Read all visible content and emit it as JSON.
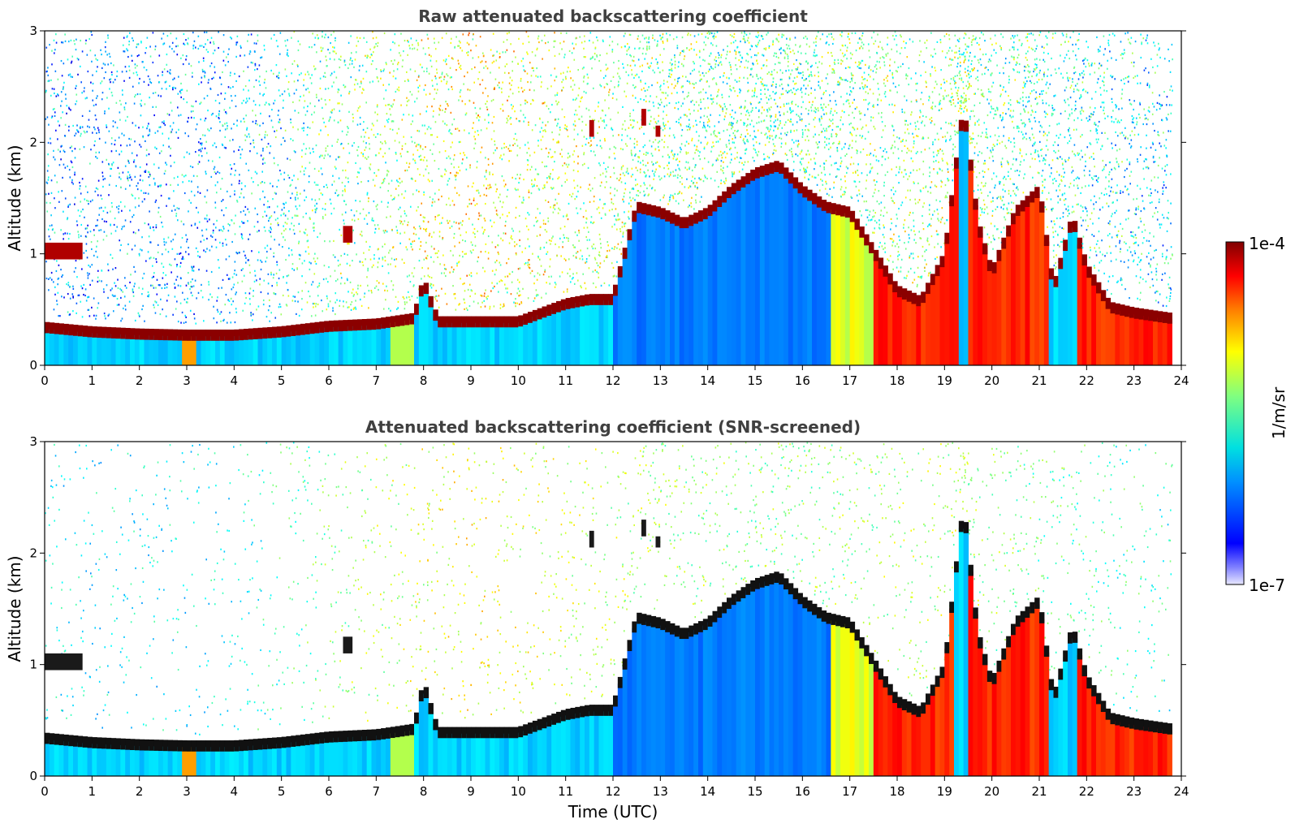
{
  "chart_data": [
    {
      "type": "heatmap",
      "title": "Raw attenuated backscattering coefficient",
      "xlabel": "",
      "ylabel": "Altitude (km)",
      "xlim": [
        0,
        24
      ],
      "ylim": [
        0,
        3
      ],
      "x_ticks": [
        "0",
        "1",
        "2",
        "3",
        "4",
        "5",
        "6",
        "7",
        "8",
        "9",
        "10",
        "11",
        "12",
        "13",
        "14",
        "15",
        "16",
        "17",
        "18",
        "19",
        "20",
        "21",
        "22",
        "23",
        "24"
      ],
      "y_ticks": [
        "0",
        "1",
        "2",
        "3"
      ],
      "layer_top_km": [
        [
          0,
          0.37
        ],
        [
          1,
          0.33
        ],
        [
          2,
          0.31
        ],
        [
          3,
          0.3
        ],
        [
          4,
          0.3
        ],
        [
          5,
          0.33
        ],
        [
          6,
          0.38
        ],
        [
          7,
          0.4
        ],
        [
          7.8,
          0.45
        ],
        [
          8,
          0.78
        ],
        [
          8.3,
          0.42
        ],
        [
          9,
          0.42
        ],
        [
          10,
          0.42
        ],
        [
          10.5,
          0.5
        ],
        [
          11,
          0.58
        ],
        [
          11.5,
          0.62
        ],
        [
          12,
          0.62
        ],
        [
          12.5,
          1.45
        ],
        [
          13,
          1.4
        ],
        [
          13.5,
          1.3
        ],
        [
          14,
          1.4
        ],
        [
          14.5,
          1.6
        ],
        [
          15,
          1.75
        ],
        [
          15.5,
          1.82
        ],
        [
          16,
          1.6
        ],
        [
          16.5,
          1.45
        ],
        [
          17,
          1.4
        ],
        [
          17.5,
          1.05
        ],
        [
          18,
          0.7
        ],
        [
          18.5,
          0.6
        ],
        [
          19,
          1.0
        ],
        [
          19.4,
          2.35
        ],
        [
          19.7,
          1.3
        ],
        [
          20,
          0.85
        ],
        [
          20.5,
          1.4
        ],
        [
          21,
          1.6
        ],
        [
          21.3,
          0.7
        ],
        [
          21.7,
          1.35
        ],
        [
          22,
          0.9
        ],
        [
          22.5,
          0.55
        ],
        [
          23,
          0.5
        ],
        [
          23.8,
          0.45
        ]
      ],
      "high_signal_regions": [
        {
          "x": [
            17.5,
            21.2
          ],
          "y": [
            0,
            1.0
          ],
          "level": "high"
        },
        {
          "x": [
            21.8,
            23.8
          ],
          "y": [
            0,
            0.4
          ],
          "level": "high"
        }
      ],
      "aerosol_signal_above_layer": [
        [
          0,
          0.05
        ],
        [
          4,
          0.1
        ],
        [
          6,
          0.35
        ],
        [
          9,
          0.6
        ],
        [
          11,
          0.5
        ],
        [
          13,
          0.4
        ],
        [
          16,
          0.35
        ],
        [
          19,
          0.45
        ],
        [
          21,
          0.3
        ],
        [
          24,
          0.15
        ]
      ],
      "clouds": [
        {
          "x": [
            0.0,
            0.8
          ],
          "y": [
            0.95,
            1.1
          ]
        },
        {
          "x": [
            6.3,
            6.5
          ],
          "y": [
            1.1,
            1.25
          ]
        },
        {
          "x": [
            11.5,
            11.6
          ],
          "y": [
            2.05,
            2.2
          ]
        },
        {
          "x": [
            12.6,
            12.7
          ],
          "y": [
            2.15,
            2.3
          ]
        },
        {
          "x": [
            12.9,
            13.0
          ],
          "y": [
            2.05,
            2.15
          ]
        }
      ],
      "colormap": "jet",
      "colorbar": {
        "min_label": "1e-7",
        "max_label": "1e-4",
        "label": "1/m/sr",
        "scale": "log"
      }
    },
    {
      "type": "heatmap",
      "title": "Attenuated backscattering coefficient (SNR-screened)",
      "xlabel": "Time (UTC)",
      "ylabel": "Altitude (km)",
      "xlim": [
        0,
        24
      ],
      "ylim": [
        0,
        3
      ],
      "x_ticks": [
        "0",
        "1",
        "2",
        "3",
        "4",
        "5",
        "6",
        "7",
        "8",
        "9",
        "10",
        "11",
        "12",
        "13",
        "14",
        "15",
        "16",
        "17",
        "18",
        "19",
        "20",
        "21",
        "22",
        "23",
        "24"
      ],
      "y_ticks": [
        "0",
        "1",
        "2",
        "3"
      ],
      "layer_top_km": [
        [
          0,
          0.37
        ],
        [
          1,
          0.33
        ],
        [
          2,
          0.31
        ],
        [
          3,
          0.3
        ],
        [
          4,
          0.3
        ],
        [
          5,
          0.33
        ],
        [
          6,
          0.38
        ],
        [
          7,
          0.4
        ],
        [
          7.8,
          0.45
        ],
        [
          8,
          0.85
        ],
        [
          8.3,
          0.42
        ],
        [
          9,
          0.42
        ],
        [
          10,
          0.42
        ],
        [
          10.5,
          0.5
        ],
        [
          11,
          0.58
        ],
        [
          11.5,
          0.62
        ],
        [
          12,
          0.62
        ],
        [
          12.5,
          1.45
        ],
        [
          13,
          1.4
        ],
        [
          13.5,
          1.3
        ],
        [
          14,
          1.4
        ],
        [
          14.5,
          1.6
        ],
        [
          15,
          1.75
        ],
        [
          15.5,
          1.82
        ],
        [
          16,
          1.6
        ],
        [
          16.5,
          1.45
        ],
        [
          17,
          1.4
        ],
        [
          17.5,
          1.05
        ],
        [
          18,
          0.7
        ],
        [
          18.5,
          0.6
        ],
        [
          19,
          1.0
        ],
        [
          19.4,
          2.45
        ],
        [
          19.7,
          1.3
        ],
        [
          20,
          0.85
        ],
        [
          20.5,
          1.4
        ],
        [
          21,
          1.6
        ],
        [
          21.3,
          0.7
        ],
        [
          21.7,
          1.35
        ],
        [
          22,
          0.9
        ],
        [
          22.5,
          0.55
        ],
        [
          23,
          0.5
        ],
        [
          23.8,
          0.45
        ]
      ],
      "high_signal_regions": [
        {
          "x": [
            17.5,
            21.2
          ],
          "y": [
            0,
            1.0
          ],
          "level": "high"
        },
        {
          "x": [
            21.8,
            23.8
          ],
          "y": [
            0,
            0.4
          ],
          "level": "high"
        }
      ],
      "aerosol_signal_above_layer": [
        [
          0,
          0.02
        ],
        [
          4,
          0.05
        ],
        [
          6,
          0.3
        ],
        [
          9,
          0.55
        ],
        [
          11,
          0.45
        ],
        [
          13,
          0.35
        ],
        [
          16,
          0.3
        ],
        [
          19,
          0.4
        ],
        [
          21,
          0.25
        ],
        [
          24,
          0.1
        ]
      ],
      "clouds": [
        {
          "x": [
            0.0,
            0.8
          ],
          "y": [
            0.95,
            1.1
          ]
        },
        {
          "x": [
            6.3,
            6.5
          ],
          "y": [
            1.1,
            1.25
          ]
        },
        {
          "x": [
            11.5,
            11.6
          ],
          "y": [
            2.05,
            2.2
          ]
        },
        {
          "x": [
            12.6,
            12.7
          ],
          "y": [
            2.15,
            2.3
          ]
        },
        {
          "x": [
            12.9,
            13.0
          ],
          "y": [
            2.05,
            2.15
          ]
        }
      ],
      "colormap": "jet",
      "colorbar": {
        "min_label": "1e-7",
        "max_label": "1e-4",
        "label": "1/m/sr",
        "scale": "log"
      }
    }
  ]
}
